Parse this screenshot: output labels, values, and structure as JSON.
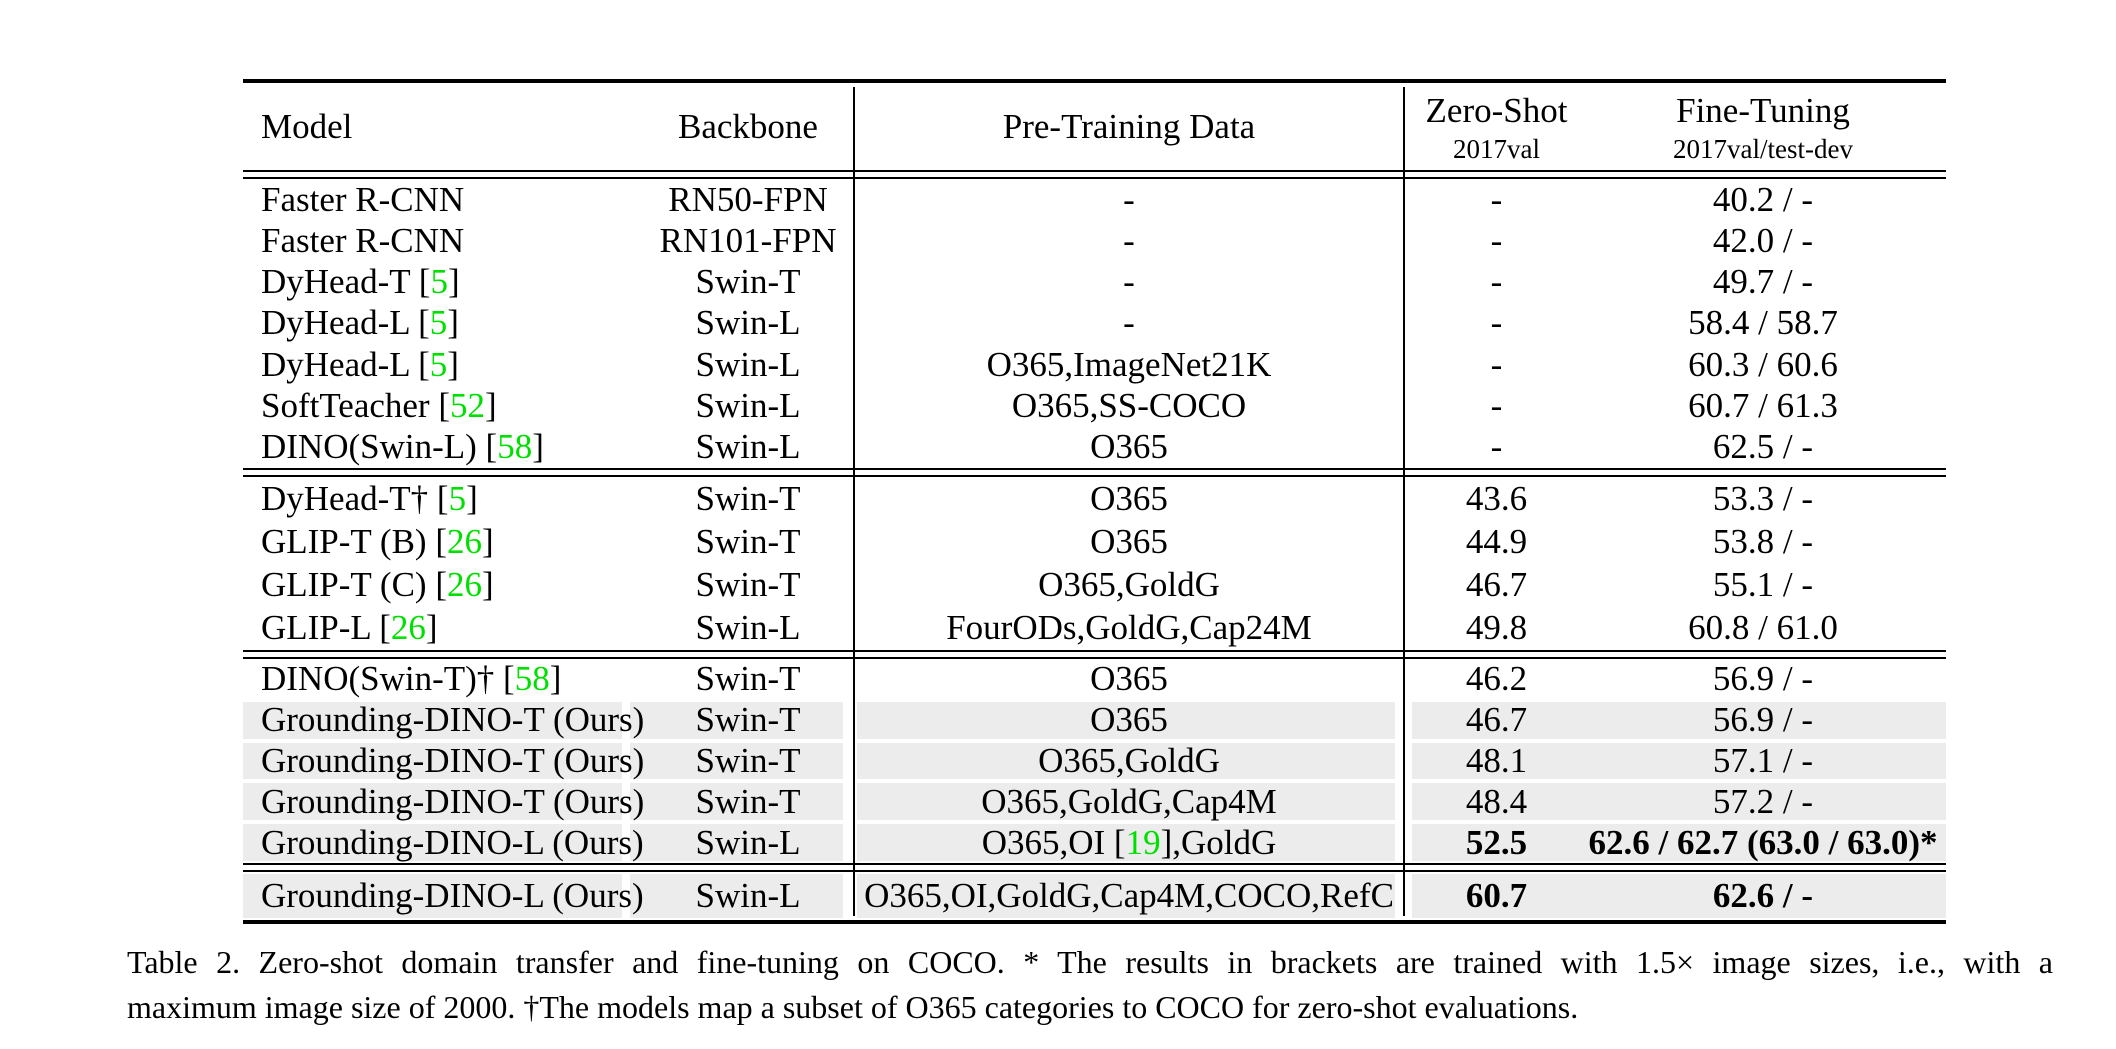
{
  "colors": {
    "citation_green": "#00e000",
    "row_shade": "#ececec",
    "rule_black": "#000000",
    "background": "#ffffff"
  },
  "table": {
    "header": {
      "model": "Model",
      "backbone": "Backbone",
      "pretraining": "Pre-Training Data",
      "zeroshot_line1": "Zero-Shot",
      "zeroshot_line2": "2017val",
      "finetuning_line1": "Fine-Tuning",
      "finetuning_line2": "2017val/test-dev"
    },
    "sections": [
      {
        "rows": [
          {
            "model": "Faster R-CNN",
            "backbone": "RN50-FPN",
            "pretrain": "-",
            "zs": "-",
            "ft": "40.2 / -"
          },
          {
            "model": "Faster R-CNN",
            "backbone": "RN101-FPN",
            "pretrain": "-",
            "zs": "-",
            "ft": "42.0 / -"
          },
          {
            "model": [
              {
                "t": "DyHead-T ["
              },
              {
                "g": "5"
              },
              {
                "t": "]"
              }
            ],
            "backbone": "Swin-T",
            "pretrain": "-",
            "zs": "-",
            "ft": "49.7 / -"
          },
          {
            "model": [
              {
                "t": "DyHead-L ["
              },
              {
                "g": "5"
              },
              {
                "t": "]"
              }
            ],
            "backbone": "Swin-L",
            "pretrain": "-",
            "zs": "-",
            "ft": "58.4 / 58.7"
          },
          {
            "model": [
              {
                "t": "DyHead-L ["
              },
              {
                "g": "5"
              },
              {
                "t": "]"
              }
            ],
            "backbone": "Swin-L",
            "pretrain": "O365,ImageNet21K",
            "zs": "-",
            "ft": "60.3 / 60.6"
          },
          {
            "model": [
              {
                "t": "SoftTeacher ["
              },
              {
                "g": "52"
              },
              {
                "t": "]"
              }
            ],
            "backbone": "Swin-L",
            "pretrain": "O365,SS-COCO",
            "zs": "-",
            "ft": "60.7 / 61.3"
          },
          {
            "model": [
              {
                "t": "DINO(Swin-L) ["
              },
              {
                "g": "58"
              },
              {
                "t": "]"
              }
            ],
            "backbone": "Swin-L",
            "pretrain": "O365",
            "zs": "-",
            "ft": "62.5 / -"
          }
        ]
      },
      {
        "rows": [
          {
            "model": [
              {
                "t": "DyHead-T† ["
              },
              {
                "g": "5"
              },
              {
                "t": "]"
              }
            ],
            "backbone": "Swin-T",
            "pretrain": "O365",
            "zs": "43.6",
            "ft": "53.3 / -"
          },
          {
            "model": [
              {
                "t": "GLIP-T (B) ["
              },
              {
                "g": "26"
              },
              {
                "t": "]"
              }
            ],
            "backbone": "Swin-T",
            "pretrain": "O365",
            "zs": "44.9",
            "ft": "53.8 / -"
          },
          {
            "model": [
              {
                "t": "GLIP-T (C) ["
              },
              {
                "g": "26"
              },
              {
                "t": "]"
              }
            ],
            "backbone": "Swin-T",
            "pretrain": "O365,GoldG",
            "zs": "46.7",
            "ft": "55.1 / -"
          },
          {
            "model": [
              {
                "t": "GLIP-L ["
              },
              {
                "g": "26"
              },
              {
                "t": "]"
              }
            ],
            "backbone": "Swin-L",
            "pretrain": "FourODs,GoldG,Cap24M",
            "zs": "49.8",
            "ft": "60.8 / 61.0"
          }
        ]
      },
      {
        "rows": [
          {
            "model": [
              {
                "t": "DINO(Swin-T)† ["
              },
              {
                "g": "58"
              },
              {
                "t": "]"
              }
            ],
            "backbone": "Swin-T",
            "pretrain": "O365",
            "zs": "46.2",
            "ft": "56.9 / -"
          },
          {
            "model": "Grounding-DINO-T (Ours)",
            "backbone": "Swin-T",
            "pretrain": "O365",
            "zs": "46.7",
            "ft": "56.9 / -",
            "shaded": true
          },
          {
            "model": "Grounding-DINO-T (Ours)",
            "backbone": "Swin-T",
            "pretrain": "O365,GoldG",
            "zs": "48.1",
            "ft": "57.1 / -",
            "shaded": true
          },
          {
            "model": "Grounding-DINO-T (Ours)",
            "backbone": "Swin-T",
            "pretrain": "O365,GoldG,Cap4M",
            "zs": "48.4",
            "ft": "57.2 / -",
            "shaded": true
          },
          {
            "model": "Grounding-DINO-L (Ours)",
            "backbone": "Swin-L",
            "pretrain": [
              {
                "t": "O365,OI ["
              },
              {
                "g": "19"
              },
              {
                "t": "],GoldG"
              }
            ],
            "zs": "52.5",
            "ft": "62.6 / 62.7 (63.0 / 63.0)*",
            "shaded": true,
            "zs_bold": true,
            "ft_bold": true
          }
        ]
      },
      {
        "rows": [
          {
            "model": "Grounding-DINO-L (Ours)",
            "backbone": "Swin-L",
            "pretrain": "O365,OI,GoldG,Cap4M,COCO,RefC",
            "zs": "60.7",
            "ft": "62.6 / -",
            "shaded": true,
            "zs_bold": true,
            "ft_bold": true
          }
        ]
      }
    ]
  },
  "caption": {
    "line1": "Table 2.  Zero-shot domain transfer and fine-tuning on COCO. * The results in brackets are trained with 1.5× image sizes, i.e., with a",
    "line2": "maximum image size of 2000. †The models map a subset of O365 categories to COCO for zero-shot evaluations."
  }
}
